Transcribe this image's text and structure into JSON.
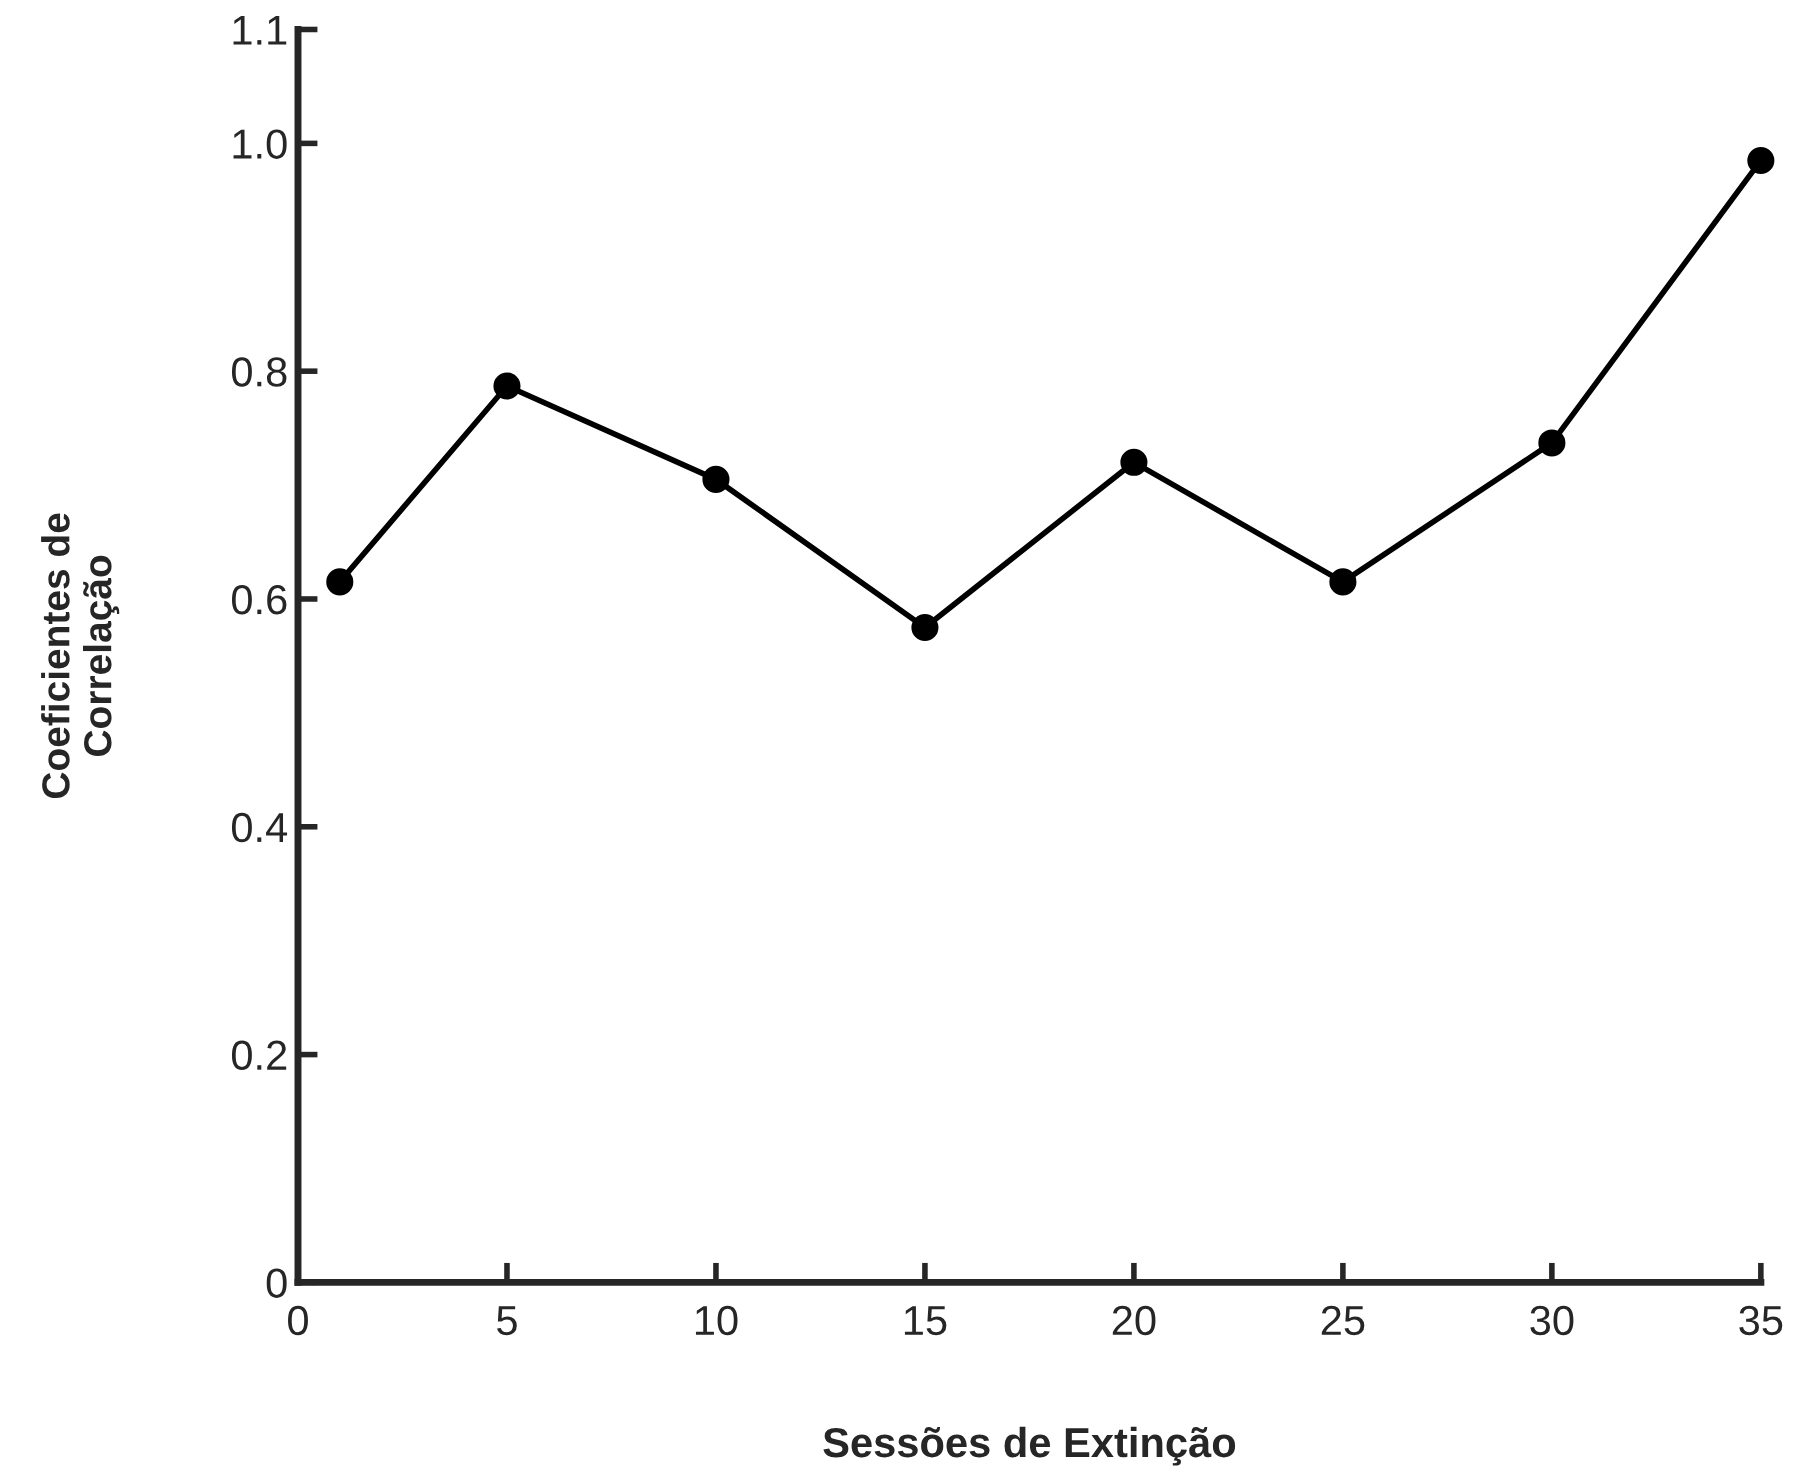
{
  "chart_data": {
    "type": "line",
    "xlabel": "Sessões de Extinção",
    "ylabel": "Coeficientes de\nCorrelação",
    "x": [
      1,
      5,
      10,
      15,
      20,
      25,
      30,
      35
    ],
    "series": [
      {
        "color": "#000000",
        "values": [
          0.615,
          0.787,
          0.705,
          0.575,
          0.72,
          0.615,
          0.737,
          0.985
        ]
      }
    ],
    "xlim": [
      0,
      35
    ],
    "xticks": [
      0,
      5,
      10,
      15,
      20,
      25,
      30,
      35
    ],
    "ylim": [
      0,
      1.1
    ],
    "yticks": [
      0,
      0.2,
      0.4,
      0.6,
      0.8,
      {
        "value": 1,
        "label": "1.0"
      },
      1.1
    ],
    "marker": "circle",
    "line_style": "solid",
    "grid": false,
    "legend": false
  }
}
